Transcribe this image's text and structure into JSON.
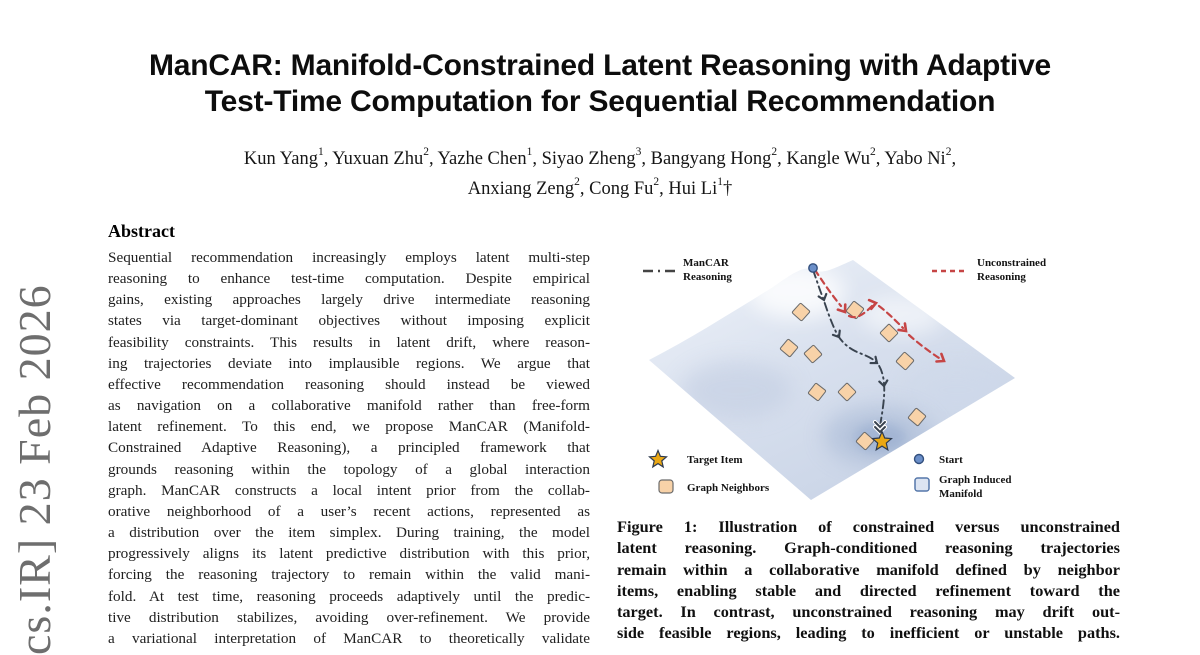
{
  "arxiv_banner": {
    "text": "cs.IR]  23 Feb 2026"
  },
  "title": {
    "lines": [
      "ManCAR: Manifold-Constrained Latent Reasoning with Adaptive",
      "Test-Time Computation for Sequential Recommendation"
    ]
  },
  "authors": {
    "rows": [
      [
        {
          "name": "Kun Yang",
          "sup": "1"
        },
        {
          "name": "Yuxuan Zhu",
          "sup": "2"
        },
        {
          "name": "Yazhe Chen",
          "sup": "1"
        },
        {
          "name": "Siyao Zheng",
          "sup": "3"
        },
        {
          "name": "Bangyang Hong",
          "sup": "2"
        },
        {
          "name": "Kangle Wu",
          "sup": "2"
        },
        {
          "name": "Yabo Ni",
          "sup": "2",
          "trail": ","
        }
      ],
      [
        {
          "name": "Anxiang Zeng",
          "sup": "2"
        },
        {
          "name": "Cong Fu",
          "sup": "2"
        },
        {
          "name": "Hui Li",
          "sup": "1",
          "after": "†"
        }
      ]
    ]
  },
  "abstract": {
    "heading": "Abstract",
    "lines": [
      "Sequential recommendation increasingly employs latent multi-step",
      "reasoning to enhance test-time computation. Despite empirical",
      "gains, existing approaches largely drive intermediate reasoning",
      "states via target-dominant objectives without imposing explicit",
      "feasibility constraints. This results in latent drift, where reason-",
      "ing trajectories deviate into implausible regions. We argue that",
      "effective recommendation reasoning should instead be viewed",
      "as navigation on a collaborative manifold rather than free-form",
      "latent refinement. To this end, we propose ManCAR (Manifold-",
      "Constrained Adaptive Reasoning), a principled framework that",
      "grounds reasoning within the topology of a global interaction",
      "graph. ManCAR constructs a local intent prior from the collab-",
      "orative neighborhood of a user’s recent actions, represented as",
      "a distribution over the item simplex. During training, the model",
      "progressively aligns its latent predictive distribution with this prior,",
      "forcing the reasoning trajectory to remain within the valid mani-",
      "fold. At test time, reasoning proceeds adaptively until the predic-",
      "tive distribution stabilizes, avoiding over-refinement. We provide",
      "a variational interpretation of ManCAR to theoretically validate"
    ]
  },
  "figure": {
    "legend": {
      "mancar": [
        "ManCAR",
        "Reasoning"
      ],
      "unconstrained": [
        "Unconstrained",
        "Reasoning"
      ],
      "target_item": "Target Item",
      "graph_neighbors": "Graph Neighbors",
      "start": "Start",
      "graph_induced_manifold": [
        "Graph Induced",
        "Manifold"
      ]
    },
    "caption_lines": [
      "Figure 1: Illustration of constrained versus unconstrained",
      "latent reasoning. Graph-conditioned reasoning trajectories",
      "remain within a collaborative manifold defined by neighbor",
      "items, enabling stable and directed refinement toward the",
      "target. In contrast, unconstrained reasoning may drift out-",
      "side feasible regions, leading to inefficient or unstable paths."
    ],
    "colors": {
      "mancar_path": "#39434f",
      "unconstrained_path": "#c64545",
      "neighbor_fill": "#f8d2a8",
      "neighbor_stroke": "#6b6b6b",
      "target_star": "#eaa713",
      "start_dot": "#6b8fc9",
      "start_dot_stroke": "#33507e",
      "manifold_fill": "#dce4f2",
      "manifold_stroke": "#5577aa"
    }
  }
}
